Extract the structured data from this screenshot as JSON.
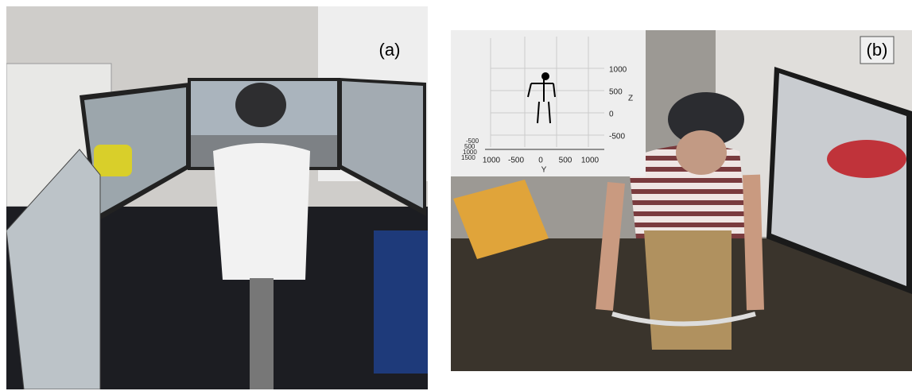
{
  "panels": [
    {
      "label": "(a)"
    },
    {
      "label": "(b)",
      "inset": {
        "z_ticks": [
          "1000",
          "500",
          "0",
          "-500"
        ],
        "z_label": "Z",
        "y_ticks": [
          "1000",
          "-500",
          "0",
          "500",
          "1000"
        ],
        "y_label": "Y",
        "x_ticks": [
          "-500",
          "500",
          "1000",
          "1500"
        ]
      }
    }
  ]
}
